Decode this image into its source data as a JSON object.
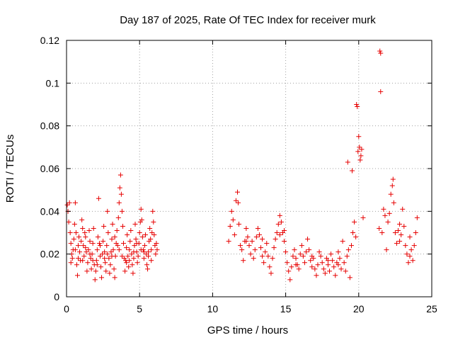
{
  "chart_data": {
    "type": "scatter",
    "title": "Day 187 of 2025, Rate Of TEC Index for receiver murk",
    "xlabel": "GPS time / hours",
    "ylabel": "ROTI / TECUs",
    "xlim": [
      0,
      25
    ],
    "ylim": [
      0,
      0.12
    ],
    "x_ticks": [
      "0",
      "5",
      "10",
      "15",
      "20",
      "25"
    ],
    "y_ticks": [
      "0",
      "0.02",
      "0.04",
      "0.06",
      "0.08",
      "0.1",
      "0.12"
    ],
    "grid": true,
    "marker": "plus",
    "color": "#e60000",
    "series": [
      {
        "points": [
          [
            0.05,
            0.043
          ],
          [
            0.1,
            0.04
          ],
          [
            0.15,
            0.035
          ],
          [
            0.2,
            0.044
          ],
          [
            0.25,
            0.03
          ],
          [
            0.3,
            0.025
          ],
          [
            0.35,
            0.02
          ],
          [
            0.4,
            0.018
          ],
          [
            0.45,
            0.022
          ],
          [
            0.5,
            0.027
          ],
          [
            0.55,
            0.034
          ],
          [
            0.6,
            0.044
          ],
          [
            0.65,
            0.03
          ],
          [
            0.7,
            0.015
          ],
          [
            0.75,
            0.01
          ],
          [
            0.8,
            0.024
          ],
          [
            0.85,
            0.028
          ],
          [
            0.9,
            0.021
          ],
          [
            0.95,
            0.017
          ],
          [
            1.0,
            0.026
          ],
          [
            1.05,
            0.036
          ],
          [
            1.1,
            0.032
          ],
          [
            1.15,
            0.024
          ],
          [
            1.2,
            0.019
          ],
          [
            1.25,
            0.03
          ],
          [
            1.3,
            0.028
          ],
          [
            1.35,
            0.021
          ],
          [
            1.4,
            0.012
          ],
          [
            1.45,
            0.016
          ],
          [
            1.5,
            0.022
          ],
          [
            1.55,
            0.031
          ],
          [
            1.6,
            0.026
          ],
          [
            1.65,
            0.018
          ],
          [
            1.7,
            0.013
          ],
          [
            1.75,
            0.02
          ],
          [
            1.8,
            0.025
          ],
          [
            1.85,
            0.032
          ],
          [
            1.9,
            0.015
          ],
          [
            1.95,
            0.008
          ],
          [
            2.0,
            0.012
          ],
          [
            2.05,
            0.017
          ],
          [
            2.1,
            0.022
          ],
          [
            2.15,
            0.028
          ],
          [
            2.2,
            0.046
          ],
          [
            2.25,
            0.025
          ],
          [
            2.3,
            0.019
          ],
          [
            2.35,
            0.014
          ],
          [
            2.4,
            0.009
          ],
          [
            2.45,
            0.02
          ],
          [
            2.5,
            0.026
          ],
          [
            2.55,
            0.033
          ],
          [
            2.6,
            0.021
          ],
          [
            2.65,
            0.016
          ],
          [
            2.7,
            0.012
          ],
          [
            2.75,
            0.024
          ],
          [
            2.8,
            0.04
          ],
          [
            2.85,
            0.03
          ],
          [
            2.9,
            0.018
          ],
          [
            2.95,
            0.011
          ],
          [
            3.0,
            0.015
          ],
          [
            3.05,
            0.021
          ],
          [
            3.1,
            0.027
          ],
          [
            3.15,
            0.034
          ],
          [
            3.2,
            0.022
          ],
          [
            3.25,
            0.013
          ],
          [
            3.3,
            0.009
          ],
          [
            3.35,
            0.019
          ],
          [
            3.4,
            0.025
          ],
          [
            3.45,
            0.031
          ],
          [
            3.5,
            0.024
          ],
          [
            3.55,
            0.037
          ],
          [
            3.6,
            0.044
          ],
          [
            3.65,
            0.051
          ],
          [
            3.7,
            0.057
          ],
          [
            3.75,
            0.048
          ],
          [
            3.8,
            0.04
          ],
          [
            3.85,
            0.033
          ],
          [
            3.9,
            0.025
          ],
          [
            3.95,
            0.018
          ],
          [
            4.0,
            0.012
          ],
          [
            4.05,
            0.017
          ],
          [
            4.1,
            0.023
          ],
          [
            4.15,
            0.029
          ],
          [
            4.2,
            0.019
          ],
          [
            4.25,
            0.014
          ],
          [
            4.3,
            0.022
          ],
          [
            4.35,
            0.026
          ],
          [
            4.4,
            0.031
          ],
          [
            4.45,
            0.02
          ],
          [
            4.5,
            0.015
          ],
          [
            4.55,
            0.011
          ],
          [
            4.6,
            0.018
          ],
          [
            4.65,
            0.024
          ],
          [
            4.7,
            0.034
          ],
          [
            4.75,
            0.027
          ],
          [
            4.8,
            0.021
          ],
          [
            4.85,
            0.016
          ],
          [
            4.9,
            0.019
          ],
          [
            4.95,
            0.025
          ],
          [
            5.0,
            0.03
          ],
          [
            5.05,
            0.035
          ],
          [
            5.1,
            0.041
          ],
          [
            5.15,
            0.036
          ],
          [
            5.2,
            0.028
          ],
          [
            5.25,
            0.022
          ],
          [
            5.3,
            0.018
          ],
          [
            5.35,
            0.024
          ],
          [
            5.4,
            0.029
          ],
          [
            5.45,
            0.02
          ],
          [
            5.5,
            0.015
          ],
          [
            5.55,
            0.013
          ],
          [
            5.6,
            0.021
          ],
          [
            5.65,
            0.026
          ],
          [
            5.7,
            0.032
          ],
          [
            5.75,
            0.027
          ],
          [
            5.8,
            0.022
          ],
          [
            5.85,
            0.03
          ],
          [
            5.9,
            0.04
          ],
          [
            5.95,
            0.035
          ],
          [
            6.0,
            0.029
          ],
          [
            6.05,
            0.024
          ],
          [
            6.1,
            0.02
          ],
          [
            6.15,
            0.025
          ],
          [
            6.2,
            0.022
          ],
          [
            0.3,
            0.016
          ],
          [
            0.8,
            0.018
          ],
          [
            1.3,
            0.023
          ],
          [
            1.8,
            0.017
          ],
          [
            2.3,
            0.024
          ],
          [
            2.8,
            0.02
          ],
          [
            3.3,
            0.028
          ],
          [
            3.8,
            0.019
          ],
          [
            4.3,
            0.017
          ],
          [
            4.8,
            0.025
          ],
          [
            5.3,
            0.021
          ],
          [
            5.8,
            0.017
          ],
          [
            0.6,
            0.022
          ],
          [
            1.6,
            0.02
          ],
          [
            2.6,
            0.018
          ],
          [
            3.6,
            0.022
          ],
          [
            4.6,
            0.021
          ],
          [
            5.6,
            0.019
          ],
          [
            1.1,
            0.017
          ],
          [
            2.1,
            0.015
          ],
          [
            3.1,
            0.019
          ],
          [
            4.1,
            0.016
          ],
          [
            5.1,
            0.022
          ],
          [
            11.1,
            0.026
          ],
          [
            11.2,
            0.033
          ],
          [
            11.3,
            0.04
          ],
          [
            11.4,
            0.036
          ],
          [
            11.5,
            0.029
          ],
          [
            11.6,
            0.045
          ],
          [
            11.7,
            0.049
          ],
          [
            11.75,
            0.044
          ],
          [
            11.8,
            0.034
          ],
          [
            11.9,
            0.024
          ],
          [
            12.0,
            0.022
          ],
          [
            12.1,
            0.017
          ],
          [
            12.2,
            0.026
          ],
          [
            12.3,
            0.032
          ],
          [
            12.4,
            0.028
          ],
          [
            12.5,
            0.024
          ],
          [
            12.6,
            0.02
          ],
          [
            12.7,
            0.026
          ],
          [
            12.8,
            0.018
          ],
          [
            12.9,
            0.022
          ],
          [
            13.0,
            0.028
          ],
          [
            13.1,
            0.032
          ],
          [
            13.2,
            0.029
          ],
          [
            13.3,
            0.023
          ],
          [
            13.4,
            0.019
          ],
          [
            13.5,
            0.016
          ],
          [
            13.6,
            0.021
          ],
          [
            13.7,
            0.025
          ],
          [
            13.8,
            0.019
          ],
          [
            13.9,
            0.014
          ],
          [
            14.0,
            0.011
          ],
          [
            14.1,
            0.018
          ],
          [
            14.2,
            0.023
          ],
          [
            14.3,
            0.027
          ],
          [
            14.4,
            0.03
          ],
          [
            14.5,
            0.034
          ],
          [
            14.6,
            0.038
          ],
          [
            14.7,
            0.035
          ],
          [
            14.8,
            0.03
          ],
          [
            14.9,
            0.026
          ],
          [
            15.0,
            0.021
          ],
          [
            15.1,
            0.016
          ],
          [
            15.2,
            0.012
          ],
          [
            15.3,
            0.008
          ],
          [
            15.4,
            0.014
          ],
          [
            15.5,
            0.019
          ],
          [
            15.6,
            0.022
          ],
          [
            15.7,
            0.018
          ],
          [
            15.8,
            0.015
          ],
          [
            15.9,
            0.013
          ],
          [
            16.0,
            0.02
          ],
          [
            16.1,
            0.024
          ],
          [
            16.2,
            0.019
          ],
          [
            16.3,
            0.016
          ],
          [
            16.4,
            0.021
          ],
          [
            16.5,
            0.027
          ],
          [
            16.6,
            0.022
          ],
          [
            16.7,
            0.017
          ],
          [
            16.8,
            0.014
          ],
          [
            16.9,
            0.018
          ],
          [
            17.0,
            0.013
          ],
          [
            17.1,
            0.01
          ],
          [
            17.2,
            0.015
          ],
          [
            17.3,
            0.021
          ],
          [
            17.4,
            0.019
          ],
          [
            17.5,
            0.016
          ],
          [
            17.6,
            0.013
          ],
          [
            17.7,
            0.011
          ],
          [
            17.8,
            0.018
          ],
          [
            17.9,
            0.015
          ],
          [
            18.0,
            0.012
          ],
          [
            18.1,
            0.02
          ],
          [
            18.2,
            0.017
          ],
          [
            18.3,
            0.014
          ],
          [
            18.4,
            0.01
          ],
          [
            18.5,
            0.016
          ],
          [
            18.6,
            0.021
          ],
          [
            18.7,
            0.018
          ],
          [
            18.8,
            0.013
          ],
          [
            18.9,
            0.026
          ],
          [
            19.0,
            0.016
          ],
          [
            19.1,
            0.012
          ],
          [
            19.2,
            0.019
          ],
          [
            19.25,
            0.063
          ],
          [
            19.3,
            0.022
          ],
          [
            19.4,
            0.009
          ],
          [
            19.5,
            0.024
          ],
          [
            19.55,
            0.059
          ],
          [
            19.6,
            0.03
          ],
          [
            19.7,
            0.035
          ],
          [
            19.8,
            0.028
          ],
          [
            19.85,
            0.09
          ],
          [
            19.9,
            0.089
          ],
          [
            19.95,
            0.068
          ],
          [
            20.0,
            0.075
          ],
          [
            20.05,
            0.07
          ],
          [
            20.1,
            0.064
          ],
          [
            20.15,
            0.066
          ],
          [
            20.2,
            0.069
          ],
          [
            20.3,
            0.037
          ],
          [
            21.4,
            0.032
          ],
          [
            21.45,
            0.115
          ],
          [
            21.5,
            0.114
          ],
          [
            21.5,
            0.096
          ],
          [
            21.6,
            0.03
          ],
          [
            21.7,
            0.041
          ],
          [
            21.8,
            0.038
          ],
          [
            21.9,
            0.022
          ],
          [
            22.0,
            0.035
          ],
          [
            22.1,
            0.039
          ],
          [
            22.2,
            0.048
          ],
          [
            22.3,
            0.052
          ],
          [
            22.35,
            0.055
          ],
          [
            22.4,
            0.044
          ],
          [
            22.5,
            0.03
          ],
          [
            22.6,
            0.025
          ],
          [
            22.7,
            0.031
          ],
          [
            22.8,
            0.034
          ],
          [
            22.9,
            0.029
          ],
          [
            23.0,
            0.041
          ],
          [
            23.1,
            0.033
          ],
          [
            23.2,
            0.024
          ],
          [
            23.3,
            0.02
          ],
          [
            23.4,
            0.016
          ],
          [
            23.5,
            0.028
          ],
          [
            23.6,
            0.022
          ],
          [
            23.7,
            0.017
          ],
          [
            23.8,
            0.024
          ],
          [
            23.9,
            0.03
          ],
          [
            24.0,
            0.037
          ],
          [
            12.3,
            0.026
          ],
          [
            13.4,
            0.027
          ],
          [
            14.6,
            0.029
          ],
          [
            15.7,
            0.015
          ],
          [
            16.8,
            0.019
          ],
          [
            17.9,
            0.017
          ],
          [
            18.6,
            0.015
          ],
          [
            23.5,
            0.019
          ],
          [
            22.8,
            0.026
          ],
          [
            14.9,
            0.031
          ]
        ]
      }
    ]
  }
}
